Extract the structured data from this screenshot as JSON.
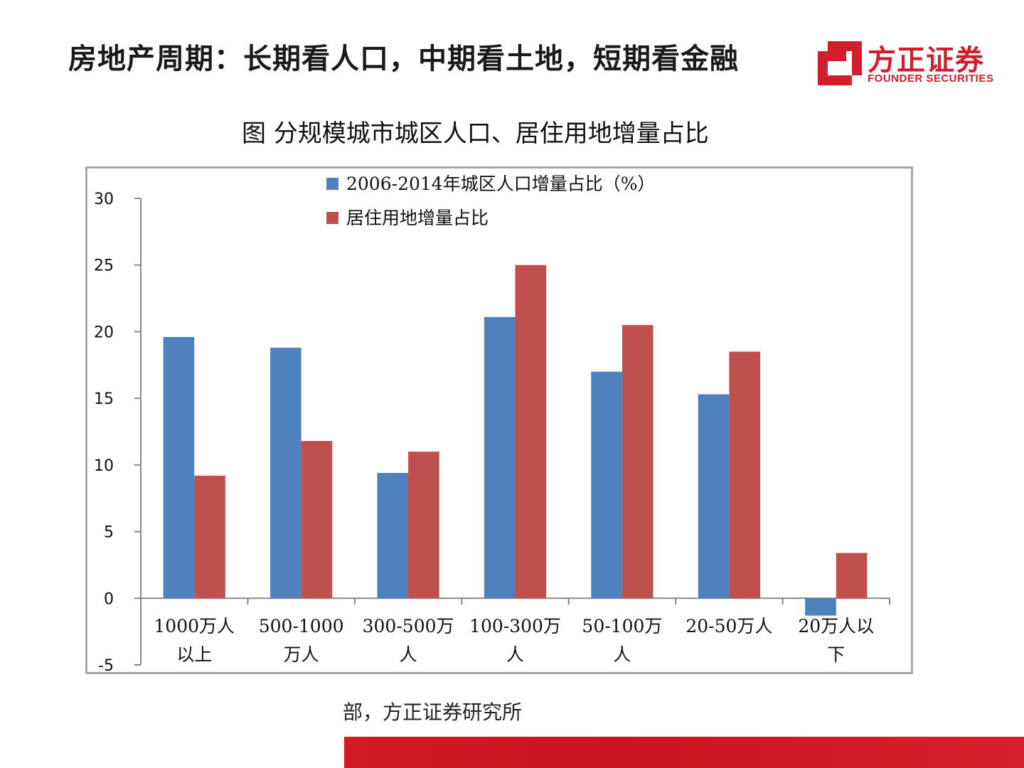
{
  "slide": {
    "title": "房地产周期：长期看人口，中期看土地，短期看金融"
  },
  "logo": {
    "name_cn": "方正证券",
    "name_en": "FOUNDER SECURITIES",
    "brand_color": "#d21d2b"
  },
  "source_text": "部，方正证券研究所",
  "chart_data": {
    "type": "bar",
    "title": "图  分规模城市城区人口、居住用地增量占比",
    "categories": [
      [
        "1000万人",
        "以上"
      ],
      [
        "500-1000",
        "万人"
      ],
      [
        "300-500万",
        "人"
      ],
      [
        "100-300万",
        "人"
      ],
      [
        "50-100万",
        "人"
      ],
      [
        "20-50万人"
      ],
      [
        "20万人以",
        "下"
      ]
    ],
    "series": [
      {
        "name": "2006-2014年城区人口增量占比（%）",
        "color": "#4f81bd",
        "values": [
          19.6,
          18.8,
          9.4,
          21.1,
          17.0,
          15.3,
          -1.3
        ]
      },
      {
        "name": "居住用地增量占比",
        "color": "#c0504d",
        "values": [
          9.2,
          11.8,
          11.0,
          25.0,
          20.5,
          18.5,
          3.4
        ]
      }
    ],
    "ylim": [
      -5,
      30
    ],
    "yticks": [
      -5,
      0,
      5,
      10,
      15,
      20,
      25,
      30
    ],
    "grid": false,
    "legend": "top-center"
  }
}
